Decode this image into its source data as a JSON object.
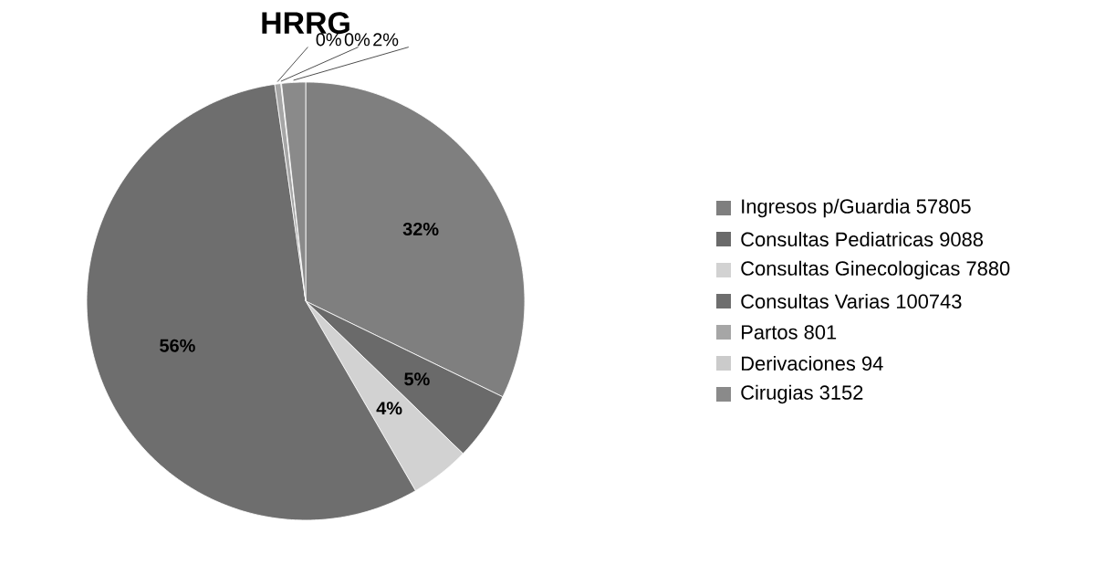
{
  "chart_data": {
    "type": "pie",
    "title": "HRRG",
    "categories": [
      "Ingresos p/Guardia 57805",
      "Consultas Pediatricas 9088",
      "Consultas Ginecologicas 7880",
      "Consultas Varias  100743",
      "Partos  801",
      "Derivaciones  94",
      "Cirugias 3152"
    ],
    "values": [
      32.19,
      5.06,
      4.39,
      56.1,
      0.45,
      0.05,
      1.76
    ],
    "value_labels": [
      "32%",
      "5%",
      "4%",
      "56%",
      "0%",
      "0%",
      "2%"
    ],
    "colors": [
      "#7f7f7f",
      "#6a6a6a",
      "#d2d2d2",
      "#6e6e6e",
      "#a6a6a6",
      "#cbcbcb",
      "#8a8a8a"
    ],
    "legend": "right"
  }
}
